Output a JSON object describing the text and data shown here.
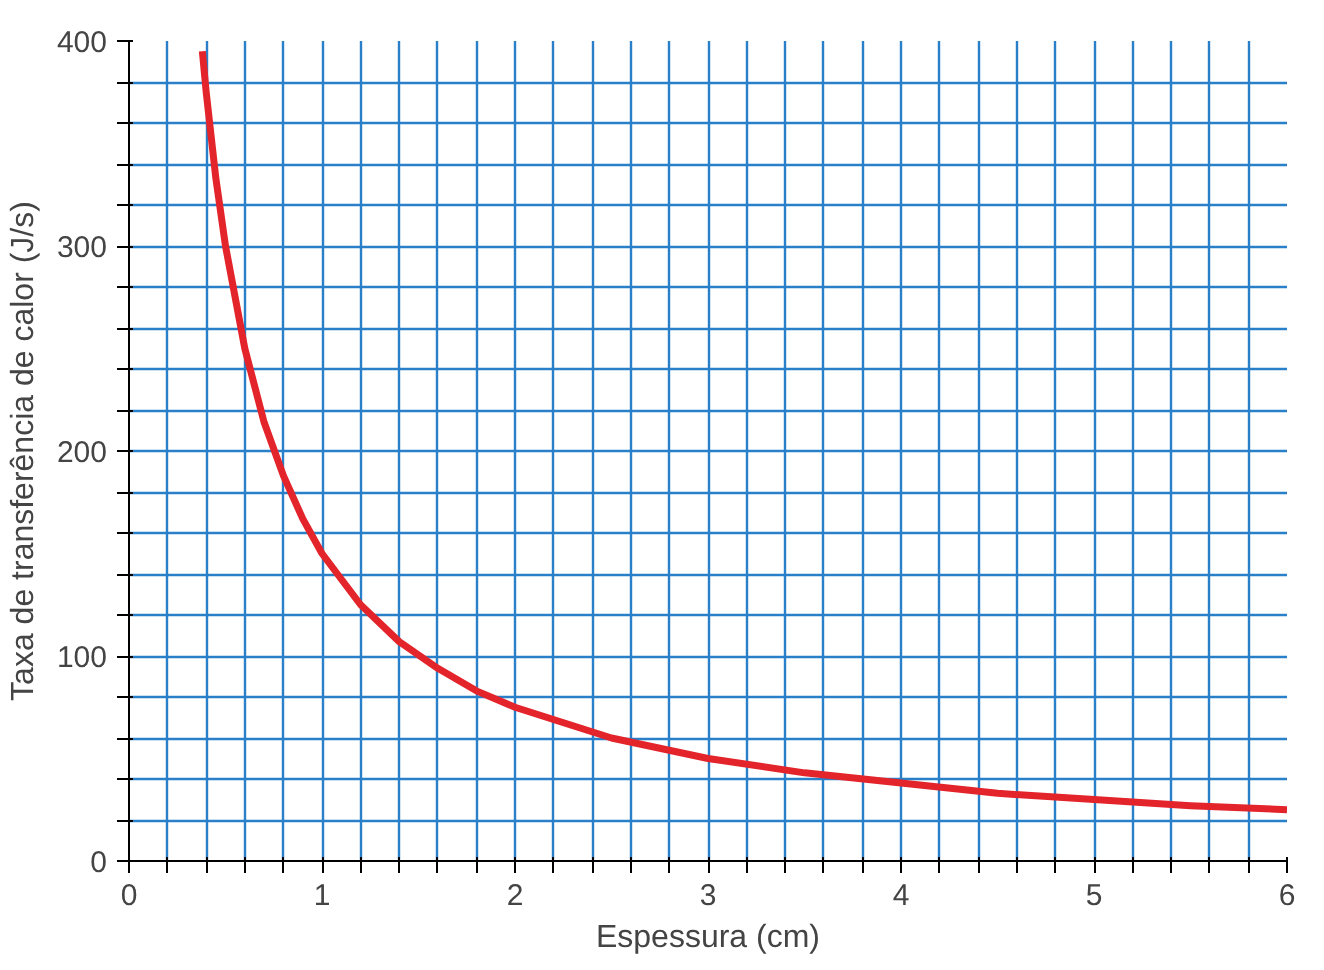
{
  "chart_data": {
    "type": "line",
    "xlabel": "Espessura (cm)",
    "ylabel": "Taxa de transferência de calor (J/s)",
    "x": [
      0.38,
      0.4,
      0.45,
      0.5,
      0.6,
      0.7,
      0.8,
      0.9,
      1,
      1.2,
      1.4,
      1.6,
      1.8,
      2,
      2.5,
      3,
      3.5,
      4,
      4.5,
      5,
      5.5,
      6
    ],
    "series": [
      {
        "color": "#e3242b",
        "values": [
          395,
          375,
          333,
          300,
          250,
          214,
          188,
          167,
          150,
          125,
          107,
          94,
          83,
          75,
          60,
          50,
          43,
          38,
          33,
          30,
          27,
          25
        ]
      }
    ],
    "xlim": [
      0,
      6
    ],
    "ylim": [
      0,
      400
    ],
    "xticks": [
      0,
      {
        "value": 0.2,
        "label": null
      },
      {
        "value": 0.4,
        "label": null
      },
      {
        "value": 0.6,
        "label": null
      },
      {
        "value": 0.8,
        "label": null
      },
      1,
      {
        "value": 1.2,
        "label": null
      },
      {
        "value": 1.4,
        "label": null
      },
      {
        "value": 1.6,
        "label": null
      },
      {
        "value": 1.8,
        "label": null
      },
      2,
      {
        "value": 2.2,
        "label": null
      },
      {
        "value": 2.4,
        "label": null
      },
      {
        "value": 2.6,
        "label": null
      },
      {
        "value": 2.8,
        "label": null
      },
      3,
      {
        "value": 3.2,
        "label": null
      },
      {
        "value": 3.4,
        "label": null
      },
      {
        "value": 3.6,
        "label": null
      },
      {
        "value": 3.8,
        "label": null
      },
      4,
      {
        "value": 4.2,
        "label": null
      },
      {
        "value": 4.4,
        "label": null
      },
      {
        "value": 4.6,
        "label": null
      },
      {
        "value": 4.8,
        "label": null
      },
      5,
      {
        "value": 5.2,
        "label": null
      },
      {
        "value": 5.4,
        "label": null
      },
      {
        "value": 5.6,
        "label": null
      },
      {
        "value": 5.8,
        "label": null
      },
      6
    ],
    "yticks": [
      0,
      {
        "value": 20,
        "label": null
      },
      {
        "value": 40,
        "label": null
      },
      {
        "value": 60,
        "label": null
      },
      {
        "value": 80,
        "label": null
      },
      100,
      {
        "value": 120,
        "label": null
      },
      {
        "value": 140,
        "label": null
      },
      {
        "value": 160,
        "label": null
      },
      {
        "value": 180,
        "label": null
      },
      200,
      {
        "value": 220,
        "label": null
      },
      {
        "value": 240,
        "label": null
      },
      {
        "value": 260,
        "label": null
      },
      {
        "value": 280,
        "label": null
      },
      300,
      {
        "value": 320,
        "label": null
      },
      {
        "value": 340,
        "label": null
      },
      {
        "value": 360,
        "label": null
      },
      {
        "value": 380,
        "label": null
      },
      400
    ],
    "grid": true,
    "marker": "none",
    "line_style": "solid"
  }
}
